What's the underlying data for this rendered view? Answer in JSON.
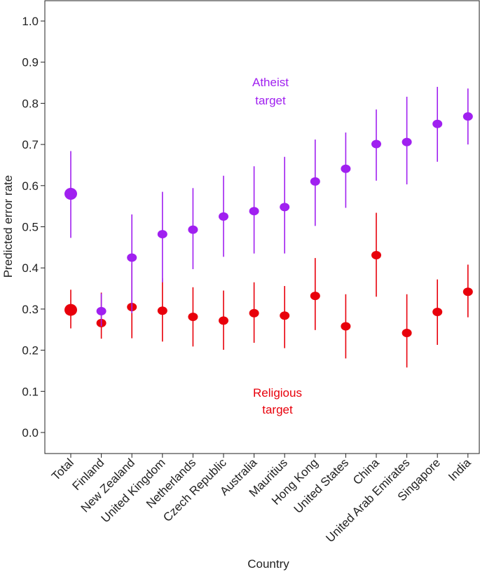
{
  "chart_data": {
    "type": "scatter",
    "xlabel": "Country",
    "ylabel": "Predicted error rate",
    "ylim": [
      -0.05,
      1.05
    ],
    "yticks": [
      0.0,
      0.1,
      0.2,
      0.3,
      0.4,
      0.5,
      0.6,
      0.7,
      0.8,
      0.9,
      1.0
    ],
    "categories": [
      "Total",
      "Finland",
      "New Zealand",
      "United Kingdom",
      "Netherlands",
      "Czech Republic",
      "Australia",
      "Mauritius",
      "Hong Kong",
      "United States",
      "China",
      "United Arab Emirates",
      "Singapore",
      "India"
    ],
    "series": [
      {
        "name": "Atheist target",
        "color": "#a020f0",
        "values": [
          0.58,
          0.295,
          0.425,
          0.482,
          0.493,
          0.525,
          0.538,
          0.548,
          0.61,
          0.641,
          0.701,
          0.706,
          0.75,
          0.768
        ],
        "lower": [
          0.473,
          0.258,
          0.29,
          0.365,
          0.397,
          0.427,
          0.435,
          0.435,
          0.502,
          0.546,
          0.612,
          0.603,
          0.658,
          0.7
        ],
        "upper": [
          0.684,
          0.338,
          0.53,
          0.585,
          0.594,
          0.624,
          0.647,
          0.67,
          0.712,
          0.729,
          0.785,
          0.816,
          0.84,
          0.836
        ]
      },
      {
        "name": "Religious target",
        "color": "#e8000b",
        "values": [
          0.298,
          0.266,
          0.305,
          0.296,
          0.281,
          0.272,
          0.29,
          0.284,
          0.332,
          0.258,
          0.431,
          0.242,
          0.293,
          0.342
        ],
        "lower": [
          0.253,
          0.228,
          0.229,
          0.221,
          0.209,
          0.201,
          0.218,
          0.205,
          0.249,
          0.18,
          0.33,
          0.158,
          0.213,
          0.28
        ],
        "upper": [
          0.347,
          0.34,
          0.41,
          0.375,
          0.353,
          0.345,
          0.365,
          0.356,
          0.424,
          0.336,
          0.534,
          0.336,
          0.372,
          0.408
        ]
      }
    ],
    "annotations": [
      {
        "name": "atheist-label",
        "lines": [
          "Atheist",
          "target"
        ],
        "color": "#a020f0"
      },
      {
        "name": "religious-label",
        "lines": [
          "Religious",
          "target"
        ],
        "color": "#e8000b"
      }
    ]
  }
}
